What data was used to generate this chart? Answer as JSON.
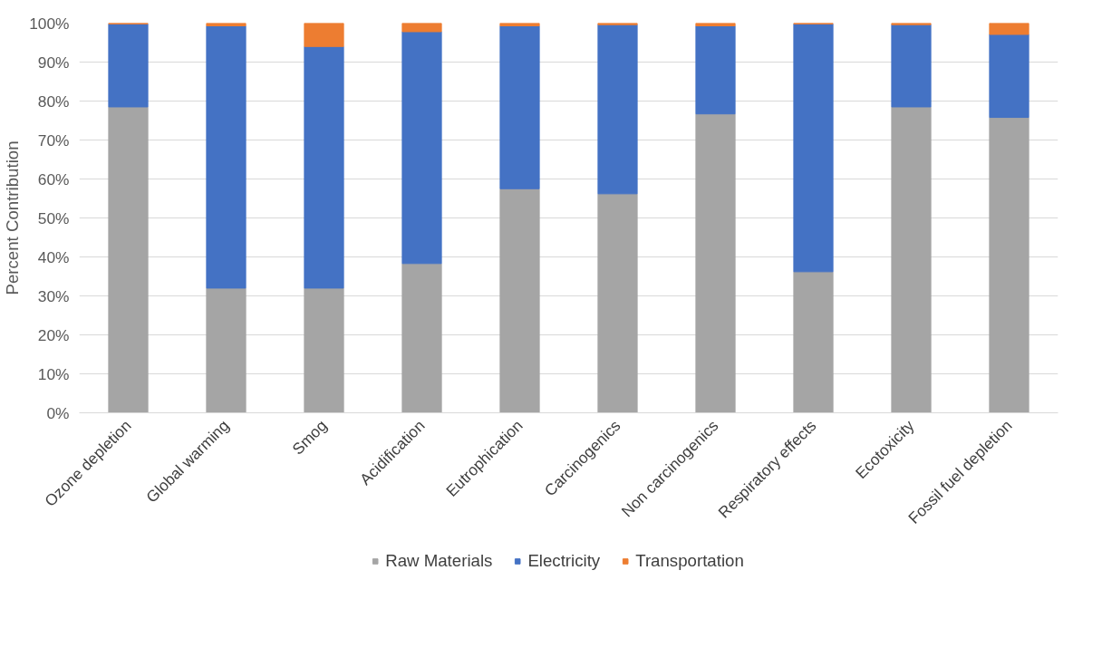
{
  "chart_data": {
    "type": "bar",
    "stacked": true,
    "ylabel": "Percent Contribution",
    "categories": [
      "Ozone depletion",
      "Global warming",
      "Smog",
      "Acidification",
      "Eutrophication",
      "Carcinogenics",
      "Non carcinogenics",
      "Respiratory effects",
      "Ecotoxicity",
      "Fossil fuel depletion"
    ],
    "series": [
      {
        "name": "Raw Materials",
        "color": "#a5a5a5",
        "values": [
          78.5,
          32.0,
          32.0,
          38.3,
          57.5,
          56.2,
          76.7,
          36.2,
          78.5,
          75.8
        ]
      },
      {
        "name": "Electricity",
        "color": "#4472c4",
        "values": [
          21.3,
          67.3,
          62.0,
          59.5,
          41.8,
          43.4,
          22.6,
          63.6,
          21.1,
          21.3
        ]
      },
      {
        "name": "Transportation",
        "color": "#ed7d31",
        "values": [
          0.2,
          0.7,
          6.0,
          2.2,
          0.7,
          0.4,
          0.7,
          0.2,
          0.4,
          2.9
        ]
      }
    ],
    "ylim": [
      0,
      100
    ],
    "yticks": [
      {
        "value": 0,
        "label": "0%"
      },
      {
        "value": 10,
        "label": "10%"
      },
      {
        "value": 20,
        "label": "20%"
      },
      {
        "value": 30,
        "label": "30%"
      },
      {
        "value": 40,
        "label": "40%"
      },
      {
        "value": 50,
        "label": "50%"
      },
      {
        "value": 60,
        "label": "60%"
      },
      {
        "value": 70,
        "label": "70%"
      },
      {
        "value": 80,
        "label": "80%"
      },
      {
        "value": 90,
        "label": "90%"
      },
      {
        "value": 100,
        "label": "100%"
      }
    ],
    "grid": "y",
    "legend": "bottom"
  }
}
